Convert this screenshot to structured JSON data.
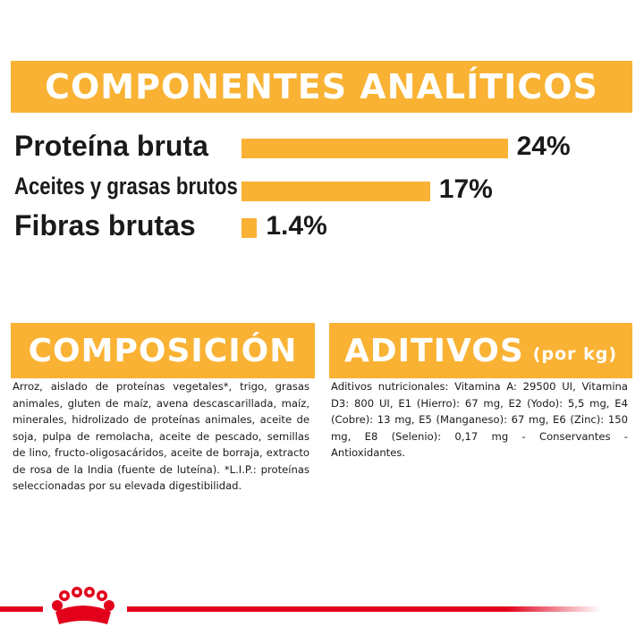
{
  "analytics": {
    "title": "COMPONENTES ANALÍTICOS",
    "rows": [
      {
        "label": "Proteína bruta",
        "value": 24,
        "value_label": "24%"
      },
      {
        "label": "Aceites y grasas brutos",
        "value": 17,
        "value_label": "17%"
      },
      {
        "label": "Fibras brutas",
        "value": 1.4,
        "value_label": "1.4%"
      }
    ]
  },
  "composition": {
    "title": "COMPOSICIÓN",
    "text": "Arroz, aislado de proteínas vegetales*, trigo, grasas animales, gluten de maíz, avena descascarillada, maíz, minerales, hidrolizado de proteínas animales, aceite de soja, pulpa de remolacha, aceite de pescado, semillas de lino, fructo-oligosacáridos, aceite de borraja, extracto de rosa de la India (fuente de luteína). *L.I.P.: proteínas seleccionadas por su elevada digestibilidad."
  },
  "additives": {
    "title": "ADITIVOS",
    "subtitle": "(por kg)",
    "text": "Aditivos nutricionales: Vitamina A: 29500 UI, Vitamina D3: 800 UI, E1 (Hierro): 67 mg, E2 (Yodo): 5,5 mg, E4 (Cobre): 13 mg, E5 (Manganeso): 67 mg, E6 (Zinc): 150 mg, E8 (Selenio): 0,17 mg - Conservantes - Antioxidantes."
  }
}
